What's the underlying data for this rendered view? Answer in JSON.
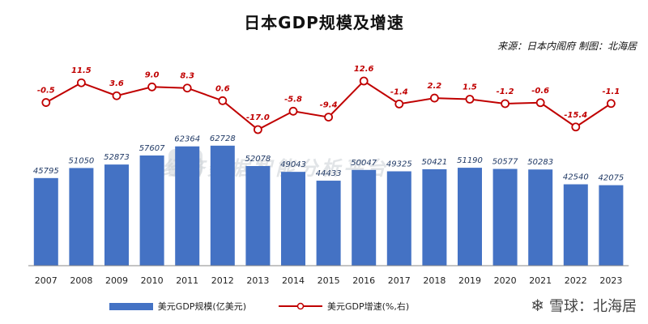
{
  "title": "日本GDP规模及增速",
  "source_text": "来源：日本内阁府  制图：北海居",
  "watermark_text": "经济数据智能分析平台",
  "credit": {
    "icon": "snowball-icon",
    "text": "雪球：北海居"
  },
  "legend": {
    "bar_label": "美元GDP规模(亿美元)",
    "line_label": "美元GDP增速(%,右)"
  },
  "colors": {
    "bar": "#4472c4",
    "line": "#c00000",
    "marker_fill": "#ffffff",
    "axis": "#555555"
  },
  "chart_data": {
    "type": "bar+line",
    "categories": [
      "2007",
      "2008",
      "2009",
      "2010",
      "2011",
      "2012",
      "2013",
      "2014",
      "2015",
      "2016",
      "2017",
      "2018",
      "2019",
      "2020",
      "2021",
      "2022",
      "2023"
    ],
    "series": [
      {
        "name": "美元GDP规模(亿美元)",
        "type": "bar",
        "values": [
          45795,
          51050,
          52873,
          57607,
          62364,
          62728,
          52078,
          49043,
          44433,
          50047,
          49325,
          50421,
          51190,
          50577,
          50283,
          42540,
          42075
        ]
      },
      {
        "name": "美元GDP增速(%,右)",
        "type": "line",
        "axis": "right",
        "values": [
          -0.5,
          11.5,
          3.6,
          9.0,
          8.3,
          0.6,
          -17.0,
          -5.8,
          -9.4,
          12.6,
          -1.4,
          2.2,
          1.5,
          -1.2,
          -0.6,
          -15.4,
          -1.1
        ],
        "labels": [
          "-0.5",
          "11.5",
          "3.6",
          "9.0",
          "8.3",
          "0.6",
          "-17.0",
          "-5.8",
          "-9.4",
          "12.6",
          "-1.4",
          "2.2",
          "1.5",
          "-1.2",
          "-0.6",
          "-15.4",
          "-1.1"
        ]
      }
    ],
    "bar_labels": [
      "45795",
      "51050",
      "52873",
      "57607",
      "62364",
      "62728",
      "52078",
      "49043",
      "44433",
      "50047",
      "49325",
      "50421",
      "51190",
      "50577",
      "50283",
      "42540",
      "42075"
    ],
    "legend_position": "bottom",
    "grid": false
  }
}
